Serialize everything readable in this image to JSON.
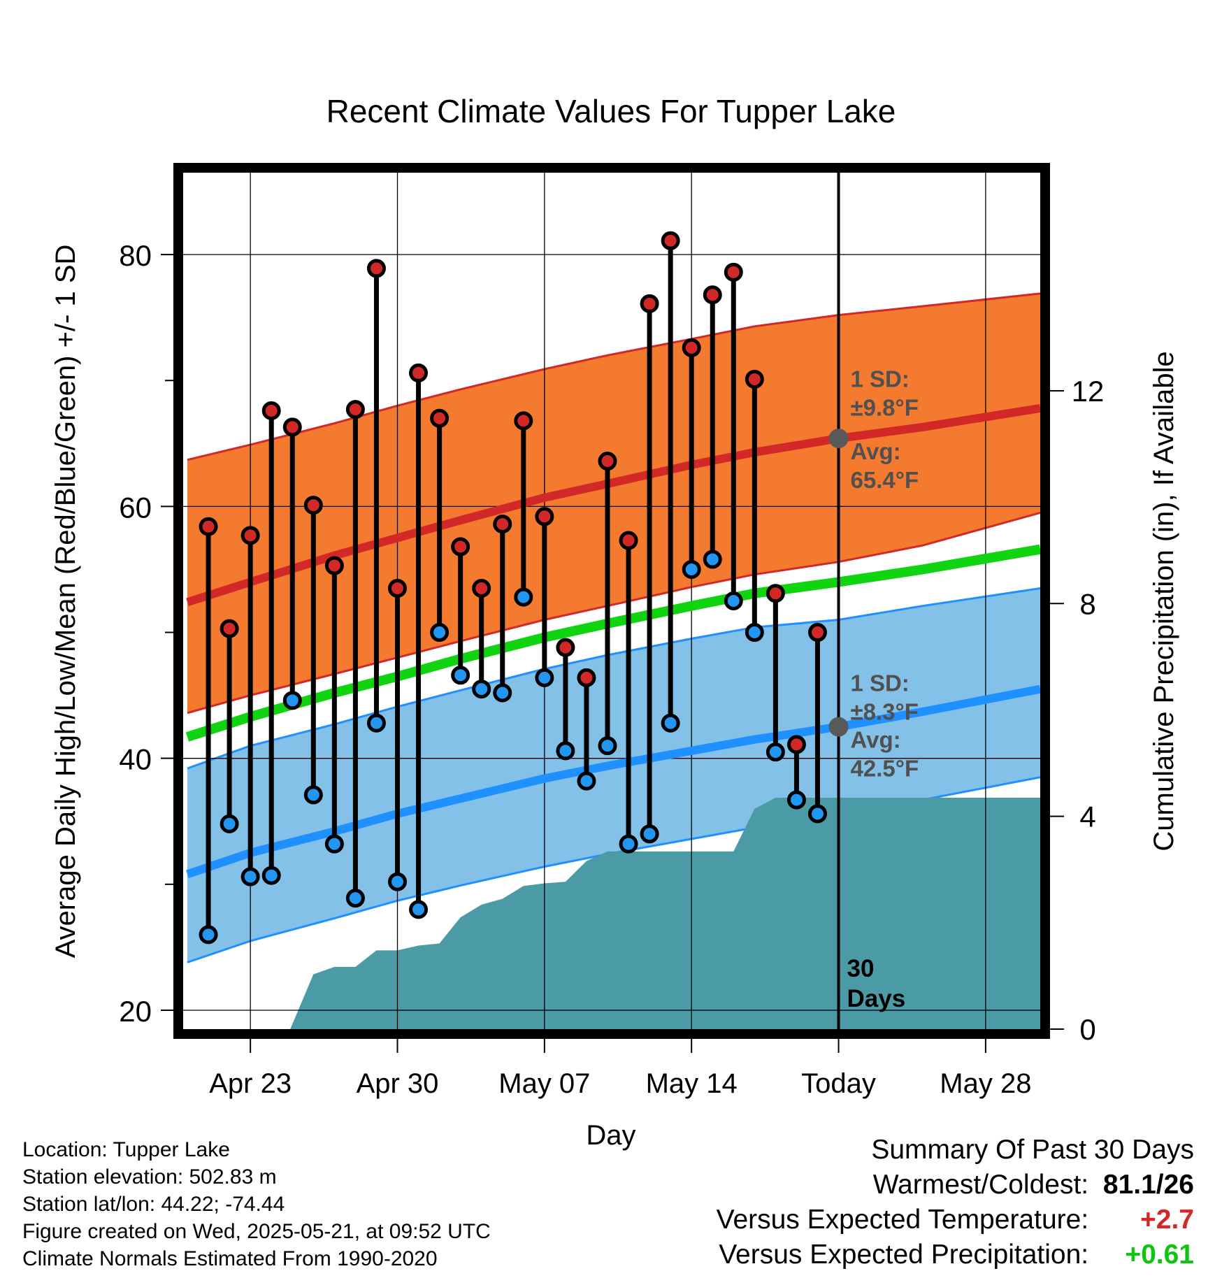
{
  "chart_data": {
    "type": "line",
    "title": "Recent Climate Values For Tupper Lake",
    "xlabel": "Day",
    "ylabel": "Average Daily High/Low/Mean (Red/Blue/Green) +/- 1 SD",
    "y2label": "Cumulative Precipitation (in), If Available",
    "x_tick_labels": [
      "Apr 23",
      "Apr 30",
      "May 07",
      "May 14",
      "Today",
      "May 28"
    ],
    "x_tick_days": [
      -28,
      -21,
      -14,
      -7,
      0,
      7
    ],
    "x_range_days": [
      -31.2,
      9.6
    ],
    "y_ticks": [
      "20",
      "40",
      "60",
      "80"
    ],
    "y_tick_values": [
      20,
      40,
      60,
      80
    ],
    "y_minor_ticks": [
      30,
      50,
      70
    ],
    "ylim": [
      18.5,
      86.5
    ],
    "y2_ticks": [
      "0",
      "4",
      "8",
      "12"
    ],
    "y2_tick_values": [
      0,
      4,
      8,
      12
    ],
    "y2lim": [
      0,
      16.1
    ],
    "grid": true,
    "colors": {
      "high_band": "#f47a30",
      "high_line": "#d22828",
      "mean_line": "#11d411",
      "low_band": "#83c1e8",
      "low_line": "#1e90ff",
      "precip": "#4a9ba5",
      "high_dot": "#d22828",
      "low_dot": "#2196f3",
      "today_marker": "#595959",
      "annotation": "#505050"
    },
    "normals": {
      "days": [
        -31,
        -28,
        -24,
        -21,
        -18,
        -14,
        -11,
        -7,
        -4,
        0,
        4,
        9.6
      ],
      "high_mean": [
        52.4,
        54.0,
        56.1,
        57.5,
        58.9,
        60.7,
        61.8,
        63.3,
        64.3,
        65.4,
        66.3,
        67.8
      ],
      "high_upper": [
        63.7,
        64.9,
        66.6,
        68.0,
        69.3,
        70.9,
        72.0,
        73.3,
        74.3,
        75.2,
        75.9,
        76.9
      ],
      "high_lower": [
        43.6,
        45.0,
        46.7,
        48.0,
        49.3,
        51.0,
        52.1,
        53.6,
        54.6,
        55.6,
        56.9,
        59.5
      ],
      "mean": [
        41.7,
        43.3,
        45.2,
        46.5,
        47.9,
        49.6,
        50.7,
        52.1,
        53.1,
        54.0,
        55.0,
        56.6
      ],
      "low_mean": [
        30.8,
        32.5,
        34.2,
        35.6,
        36.8,
        38.4,
        39.4,
        40.6,
        41.5,
        42.5,
        43.7,
        45.5
      ],
      "low_upper": [
        39.2,
        41.0,
        42.7,
        44.1,
        45.4,
        47.1,
        48.2,
        49.5,
        50.4,
        51.0,
        52.1,
        53.5
      ],
      "low_lower": [
        23.8,
        25.5,
        27.3,
        28.7,
        29.9,
        31.4,
        32.4,
        33.6,
        34.5,
        35.4,
        36.7,
        38.5
      ]
    },
    "series": [
      {
        "name": "High",
        "days": [
          -30,
          -29,
          -28,
          -27,
          -26,
          -25,
          -24,
          -23,
          -22,
          -21,
          -20,
          -19,
          -18,
          -17,
          -16,
          -15,
          -14,
          -13,
          -12,
          -11,
          -10,
          -9,
          -8,
          -7,
          -6,
          -5,
          -4,
          -3,
          -2,
          -1
        ],
        "values": [
          58.4,
          50.3,
          57.7,
          67.6,
          66.3,
          60.1,
          55.3,
          67.7,
          78.9,
          53.5,
          70.6,
          67.0,
          56.8,
          53.5,
          58.6,
          66.8,
          59.2,
          48.8,
          46.4,
          63.6,
          57.3,
          76.1,
          81.1,
          72.6,
          76.8,
          78.6,
          70.1,
          53.1,
          41.1,
          50.0
        ]
      },
      {
        "name": "Low",
        "days": [
          -30,
          -29,
          -28,
          -27,
          -26,
          -25,
          -24,
          -23,
          -22,
          -21,
          -20,
          -19,
          -18,
          -17,
          -16,
          -15,
          -14,
          -13,
          -12,
          -11,
          -10,
          -9,
          -8,
          -7,
          -6,
          -5,
          -4,
          -3,
          -2,
          -1
        ],
        "values": [
          26.0,
          34.8,
          30.6,
          30.7,
          44.6,
          37.1,
          33.2,
          28.9,
          42.8,
          30.2,
          28.0,
          50.0,
          46.6,
          45.5,
          45.2,
          52.8,
          46.4,
          40.6,
          38.2,
          41.0,
          33.2,
          34.0,
          42.8,
          55.0,
          55.8,
          52.5,
          50.0,
          40.5,
          36.7,
          35.6
        ]
      },
      {
        "name": "Cumulative Precipitation",
        "days": [
          -26.1,
          -25,
          -24,
          -23,
          -22,
          -21,
          -20,
          -19,
          -18,
          -17,
          -16,
          -15,
          -14,
          -13,
          -12,
          -11,
          -10,
          -9,
          -8,
          -7,
          -6,
          -5,
          -4,
          -3,
          -2,
          -1,
          0,
          9.6
        ],
        "values": [
          0,
          1.03,
          1.17,
          1.17,
          1.48,
          1.48,
          1.57,
          1.61,
          2.1,
          2.34,
          2.45,
          2.69,
          2.74,
          2.77,
          3.16,
          3.34,
          3.34,
          3.34,
          3.34,
          3.34,
          3.34,
          3.34,
          4.14,
          4.35,
          4.35,
          4.35,
          4.35,
          4.35
        ]
      }
    ],
    "annotations": {
      "high_sd_label": "1 SD:",
      "high_sd_value": "±9.8°F",
      "high_avg_label": "Avg:",
      "high_avg_value": "65.4°F",
      "low_sd_label": "1 SD:",
      "low_sd_value": "±8.3°F",
      "low_avg_label": "Avg:",
      "low_avg_value": "42.5°F",
      "window_label_1": "30",
      "window_label_2": "Days"
    }
  },
  "footer": {
    "location": "Location: Tupper Lake",
    "elevation": "Station elevation: 502.83 m",
    "latlon": "Station lat/lon: 44.22; -74.44",
    "created": "Figure created on Wed, 2025-05-21, at 09:52 UTC",
    "normals": "Climate Normals Estimated From 1990-2020"
  },
  "summary": {
    "title": "Summary Of Past 30 Days",
    "warmest_label": "Warmest/Coldest:",
    "warmest_value": "81.1/26",
    "temp_label": "Versus Expected Temperature:",
    "temp_value": "+2.7",
    "temp_color": "#d22828",
    "precip_label": "Versus Expected Precipitation:",
    "precip_value": "+0.61",
    "precip_color": "#11c411"
  }
}
